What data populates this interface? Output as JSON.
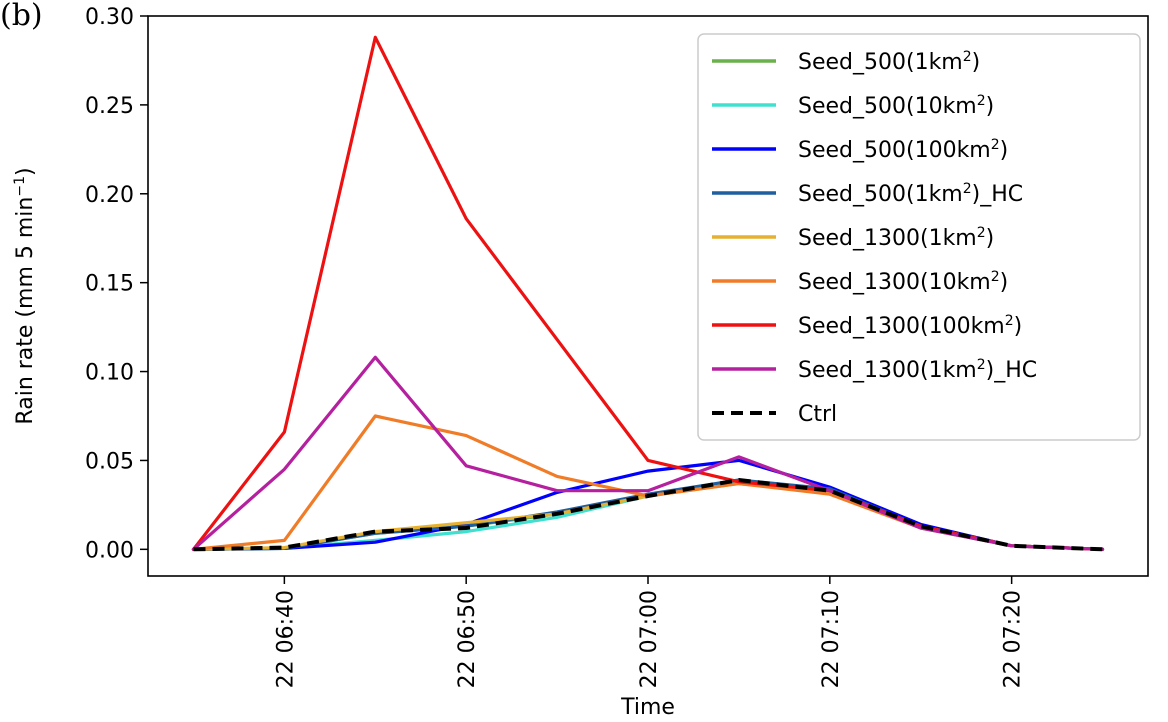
{
  "panel_label": "(b)",
  "chart_data": {
    "type": "line",
    "title": "",
    "xlabel": "Time",
    "ylabel": "Rain rate (mm 5 min",
    "ylabel_sup": "−1",
    "ylabel_close": ")",
    "ylim": [
      -0.015,
      0.3
    ],
    "xlim": [
      "22 06:35",
      "22 07:25"
    ],
    "yticks": [
      {
        "value": 0.0,
        "label": "0.00"
      },
      {
        "value": 0.05,
        "label": "0.05"
      },
      {
        "value": 0.1,
        "label": "0.10"
      },
      {
        "value": 0.15,
        "label": "0.15"
      },
      {
        "value": 0.2,
        "label": "0.20"
      },
      {
        "value": 0.25,
        "label": "0.25"
      },
      {
        "value": 0.3,
        "label": "0.30"
      }
    ],
    "xticks": [
      {
        "value": "22 06:40",
        "label": "22 06:40"
      },
      {
        "value": "22 06:50",
        "label": "22 06:50"
      },
      {
        "value": "22 07:00",
        "label": "22 07:00"
      },
      {
        "value": "22 07:10",
        "label": "22 07:10"
      },
      {
        "value": "22 07:20",
        "label": "22 07:20"
      }
    ],
    "x": [
      "22 06:35",
      "22 06:40",
      "22 06:45",
      "22 06:50",
      "22 06:55",
      "22 07:00",
      "22 07:05",
      "22 07:10",
      "22 07:15",
      "22 07:20",
      "22 07:25"
    ],
    "legend_position": "upper right",
    "grid": false,
    "series": [
      {
        "name": "Seed_500(1km",
        "sup": "2",
        "suffix": ")",
        "color": "#6ab04c",
        "dash": "",
        "values": [
          0.0,
          0.0005,
          0.009,
          0.013,
          0.02,
          0.03,
          0.038,
          0.033,
          0.013,
          0.002,
          0.0
        ]
      },
      {
        "name": "Seed_500(10km",
        "sup": "2",
        "suffix": ")",
        "color": "#40e0d0",
        "dash": "",
        "values": [
          0.0,
          0.0005,
          0.005,
          0.01,
          0.018,
          0.03,
          0.038,
          0.032,
          0.013,
          0.002,
          0.0
        ]
      },
      {
        "name": "Seed_500(100km",
        "sup": "2",
        "suffix": ")",
        "color": "#0000ff",
        "dash": "",
        "values": [
          0.0,
          0.0005,
          0.004,
          0.014,
          0.032,
          0.044,
          0.05,
          0.035,
          0.014,
          0.002,
          0.0
        ]
      },
      {
        "name": "Seed_500(1km",
        "sup": "2",
        "suffix": ")_HC",
        "color": "#1f5fa0",
        "dash": "",
        "values": [
          0.0,
          0.0005,
          0.009,
          0.013,
          0.021,
          0.031,
          0.039,
          0.034,
          0.013,
          0.002,
          0.0
        ]
      },
      {
        "name": "Seed_1300(1km",
        "sup": "2",
        "suffix": ")",
        "color": "#e6b030",
        "dash": "",
        "values": [
          0.0,
          0.001,
          0.01,
          0.015,
          0.02,
          0.03,
          0.037,
          0.032,
          0.013,
          0.002,
          0.0
        ]
      },
      {
        "name": "Seed_1300(10km",
        "sup": "2",
        "suffix": ")",
        "color": "#f07c28",
        "dash": "",
        "values": [
          0.0,
          0.005,
          0.075,
          0.064,
          0.041,
          0.03,
          0.037,
          0.031,
          0.012,
          0.002,
          0.0
        ]
      },
      {
        "name": "Seed_1300(100km",
        "sup": "2",
        "suffix": ")",
        "color": "#ee1111",
        "dash": "",
        "values": [
          0.0,
          0.066,
          0.288,
          0.186,
          0.118,
          0.05,
          0.038,
          0.033,
          0.013,
          0.002,
          0.0
        ]
      },
      {
        "name": "Seed_1300(1km",
        "sup": "2",
        "suffix": ")_HC",
        "color": "#b5209f",
        "dash": "",
        "values": [
          0.0,
          0.045,
          0.108,
          0.047,
          0.033,
          0.033,
          0.052,
          0.033,
          0.012,
          0.002,
          0.0
        ]
      },
      {
        "name": "Ctrl",
        "sup": "",
        "suffix": "",
        "color": "#000000",
        "dash": "12,7",
        "values": [
          0.0,
          0.001,
          0.01,
          0.012,
          0.02,
          0.03,
          0.039,
          0.033,
          0.013,
          0.002,
          0.0
        ]
      }
    ]
  }
}
